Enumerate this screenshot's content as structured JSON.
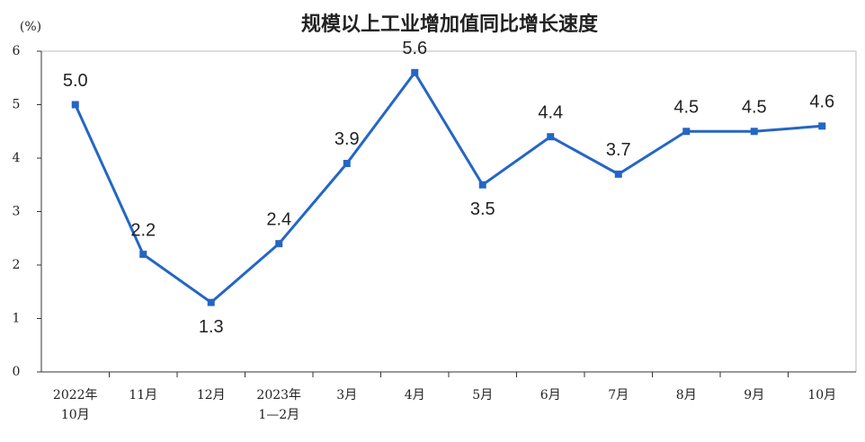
{
  "chart_data": {
    "type": "line",
    "title": "规模以上工业增加值同比增长速度",
    "y_unit": "(%)",
    "categories": [
      "2022年\n10月",
      "11月",
      "12月",
      "2023年\n1—2月",
      "3月",
      "4月",
      "5月",
      "6月",
      "7月",
      "8月",
      "9月",
      "10月"
    ],
    "series": [
      {
        "name": "规模以上工业增加值同比增长速度",
        "color": "#2466c4",
        "values": [
          5.0,
          2.2,
          1.3,
          2.4,
          3.9,
          5.6,
          3.5,
          4.4,
          3.7,
          4.5,
          4.5,
          4.6
        ],
        "value_labels": [
          "5.0",
          "2.2",
          "1.3",
          "2.4",
          "3.9",
          "5.6",
          "3.5",
          "4.4",
          "3.7",
          "4.5",
          "4.5",
          "4.6"
        ]
      }
    ],
    "ylim": [
      0,
      6
    ],
    "yticks": [
      0,
      1,
      2,
      3,
      4,
      5,
      6
    ],
    "grid": false
  }
}
